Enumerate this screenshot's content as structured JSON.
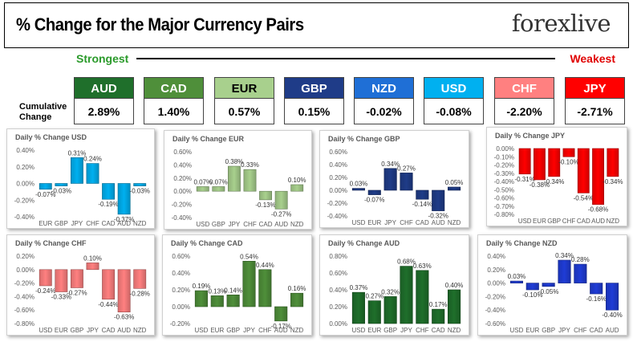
{
  "header": {
    "title": "% Change for the Major Currency Pairs",
    "logo_text": "forexlive"
  },
  "ranking": {
    "strongest_label": "Strongest",
    "weakest_label": "Weakest",
    "cumulative_label": "Cumulative Change"
  },
  "currencies": [
    {
      "code": "AUD",
      "value": "2.89%",
      "color": "#1f6f2b"
    },
    {
      "code": "CAD",
      "value": "1.40%",
      "color": "#4f8f3a"
    },
    {
      "code": "EUR",
      "value": "0.57%",
      "color": "#a8d08d"
    },
    {
      "code": "GBP",
      "value": "0.15%",
      "color": "#1f3c88"
    },
    {
      "code": "NZD",
      "value": "-0.02%",
      "color": "#1f6fd6"
    },
    {
      "code": "USD",
      "value": "-0.08%",
      "color": "#00b0f0"
    },
    {
      "code": "CHF",
      "value": "-2.20%",
      "color": "#ff8080"
    },
    {
      "code": "JPY",
      "value": "-2.71%",
      "color": "#ff0000"
    }
  ],
  "chart_data": [
    {
      "type": "bar",
      "title": "Daily % Change USD",
      "categories": [
        "EUR",
        "GBP",
        "JPY",
        "CHF",
        "CAD",
        "AUD",
        "NZD"
      ],
      "values": [
        -0.07,
        -0.03,
        0.31,
        0.24,
        -0.19,
        -0.37,
        -0.03
      ],
      "labels": [
        "-0.07%",
        "-0.03%",
        "0.31%",
        "0.24%",
        "-0.19%",
        "-0.37%",
        "-0.03%"
      ],
      "ylim": [
        -0.4,
        0.4
      ],
      "ticks": [
        "0.40%",
        "0.20%",
        "0.00%",
        "-0.20%",
        "-0.40%"
      ],
      "color": "#00b0f0"
    },
    {
      "type": "bar",
      "title": "Daily % Change EUR",
      "categories": [
        "USD",
        "GBP",
        "JPY",
        "CHF",
        "CAD",
        "AUD",
        "NZD"
      ],
      "values": [
        0.07,
        0.07,
        0.38,
        0.33,
        -0.13,
        -0.27,
        0.1
      ],
      "labels": [
        "0.07%",
        "0.07%",
        "0.38%",
        "0.33%",
        "-0.13%",
        "-0.27%",
        "0.10%"
      ],
      "ylim": [
        -0.4,
        0.6
      ],
      "ticks": [
        "0.60%",
        "0.40%",
        "0.20%",
        "0.00%",
        "-0.20%",
        "-0.40%"
      ],
      "color": "#a8d08d"
    },
    {
      "type": "bar",
      "title": "Daily % Change GBP",
      "categories": [
        "USD",
        "EUR",
        "JPY",
        "CHF",
        "CAD",
        "AUD",
        "NZD"
      ],
      "values": [
        0.03,
        -0.07,
        0.34,
        0.27,
        -0.14,
        -0.32,
        0.05
      ],
      "labels": [
        "0.03%",
        "-0.07%",
        "0.34%",
        "0.27%",
        "-0.14%",
        "-0.32%",
        "0.05%"
      ],
      "ylim": [
        -0.4,
        0.6
      ],
      "ticks": [
        "0.60%",
        "0.40%",
        "0.20%",
        "0.00%",
        "-0.20%",
        "-0.40%"
      ],
      "color": "#1f3c88"
    },
    {
      "type": "bar",
      "title": "Daily % Change JPY",
      "categories": [
        "USD",
        "EUR",
        "GBP",
        "CHF",
        "CAD",
        "AUD",
        "NZD"
      ],
      "values": [
        -0.31,
        -0.38,
        -0.34,
        -0.1,
        -0.54,
        -0.68,
        -0.34
      ],
      "labels": [
        "-0.31%",
        "-0.38%",
        "-0.34%",
        "-0.10%",
        "-0.54%",
        "-0.68%",
        "-0.34%"
      ],
      "ylim": [
        -0.8,
        0.0
      ],
      "ticks": [
        "0.00%",
        "-0.10%",
        "-0.20%",
        "-0.30%",
        "-0.40%",
        "-0.50%",
        "-0.60%",
        "-0.70%",
        "-0.80%"
      ],
      "color": "#ff0000"
    },
    {
      "type": "bar",
      "title": "Daily % Change CHF",
      "categories": [
        "USD",
        "EUR",
        "GBP",
        "JPY",
        "CAD",
        "AUD",
        "NZD"
      ],
      "values": [
        -0.24,
        -0.33,
        -0.27,
        0.1,
        -0.44,
        -0.63,
        -0.28
      ],
      "labels": [
        "-0.24%",
        "-0.33%",
        "-0.27%",
        "0.10%",
        "-0.44%",
        "-0.63%",
        "-0.28%"
      ],
      "ylim": [
        -0.8,
        0.2
      ],
      "ticks": [
        "0.20%",
        "0.00%",
        "-0.20%",
        "-0.40%",
        "-0.60%",
        "-0.80%"
      ],
      "color": "#ff8080"
    },
    {
      "type": "bar",
      "title": "Daily % Change CAD",
      "categories": [
        "USD",
        "EUR",
        "GBP",
        "JPY",
        "CHF",
        "AUD",
        "NZD"
      ],
      "values": [
        0.19,
        0.13,
        0.14,
        0.54,
        0.44,
        -0.17,
        0.16
      ],
      "labels": [
        "0.19%",
        "0.13%",
        "0.14%",
        "0.54%",
        "0.44%",
        "-0.17%",
        "0.16%"
      ],
      "ylim": [
        -0.2,
        0.6
      ],
      "ticks": [
        "0.60%",
        "0.40%",
        "0.20%",
        "0.00%",
        "-0.20%"
      ],
      "color": "#4f8f3a"
    },
    {
      "type": "bar",
      "title": "Daily % Change AUD",
      "categories": [
        "USD",
        "EUR",
        "GBP",
        "JPY",
        "CHF",
        "CAD",
        "NZD"
      ],
      "values": [
        0.37,
        0.27,
        0.32,
        0.68,
        0.63,
        0.17,
        0.4
      ],
      "labels": [
        "0.37%",
        "0.27%",
        "0.32%",
        "0.68%",
        "0.63%",
        "0.17%",
        "0.40%"
      ],
      "ylim": [
        0.0,
        0.8
      ],
      "ticks": [
        "0.80%",
        "0.60%",
        "0.40%",
        "0.20%",
        "0.00%"
      ],
      "color": "#1f6f2b"
    },
    {
      "type": "bar",
      "title": "Daily % Change NZD",
      "categories": [
        "USD",
        "EUR",
        "GBP",
        "JPY",
        "CHF",
        "CAD",
        "AUD"
      ],
      "values": [
        0.03,
        -0.1,
        -0.05,
        0.34,
        0.28,
        -0.16,
        -0.4
      ],
      "labels": [
        "0.03%",
        "-0.10%",
        "-0.05%",
        "0.34%",
        "0.28%",
        "-0.16%",
        "-0.40%"
      ],
      "ylim": [
        -0.6,
        0.4
      ],
      "ticks": [
        "0.40%",
        "0.20%",
        "0.00%",
        "-0.20%",
        "-0.40%",
        "-0.60%"
      ],
      "color": "#1f3cd6"
    }
  ]
}
